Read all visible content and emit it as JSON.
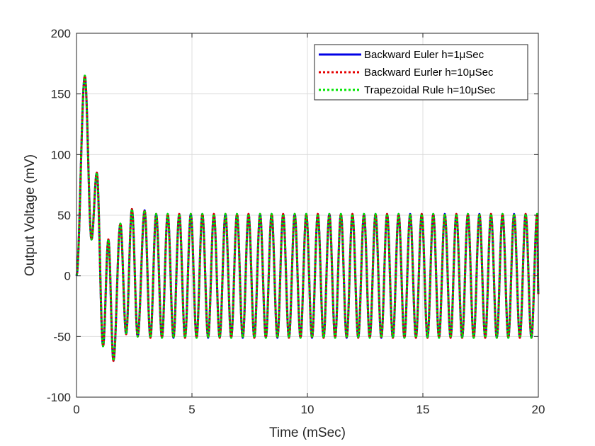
{
  "chart_data": {
    "type": "line",
    "title": "",
    "xlabel": "Time (mSec)",
    "ylabel": "Output Voltage (mV)",
    "xlim": [
      0,
      20
    ],
    "ylim": [
      -100,
      200
    ],
    "xticks": [
      0,
      5,
      10,
      15,
      20
    ],
    "yticks": [
      -100,
      -50,
      0,
      50,
      100,
      150,
      200
    ],
    "grid": true,
    "legend_position": "top-right",
    "series": [
      {
        "name": "Backward Euler h=1μSec",
        "legend_prefix": "Backward Euler h=1",
        "color": "#0000e6",
        "style": "solid"
      },
      {
        "name": "Backward Eurler h=10μSec",
        "legend_prefix": "Backward Eurler h=10",
        "color": "#e60000",
        "style": "dotted"
      },
      {
        "name": "Trapezoidal Rule h=10μSec",
        "legend_prefix": "Trapezoidal Rule h=10",
        "color": "#00e600",
        "style": "dotted"
      }
    ],
    "legend_unit": "μSec",
    "key_points": [
      {
        "x": 0.0,
        "y": 0
      },
      {
        "x": 0.36,
        "y": 165
      },
      {
        "x": 0.65,
        "y": 30
      },
      {
        "x": 0.88,
        "y": 85
      },
      {
        "x": 1.15,
        "y": -58
      },
      {
        "x": 1.38,
        "y": 30
      },
      {
        "x": 1.6,
        "y": -70
      },
      {
        "x": 1.9,
        "y": 43
      },
      {
        "x": 2.15,
        "y": -48
      },
      {
        "x": 2.4,
        "y": 55
      },
      {
        "x": 2.65,
        "y": -50
      },
      {
        "x": 2.95,
        "y": 54
      },
      {
        "x": 20.0,
        "y": -15
      }
    ],
    "steady_state": {
      "amplitude": 51,
      "period": 0.5,
      "start_x": 2.95
    }
  }
}
